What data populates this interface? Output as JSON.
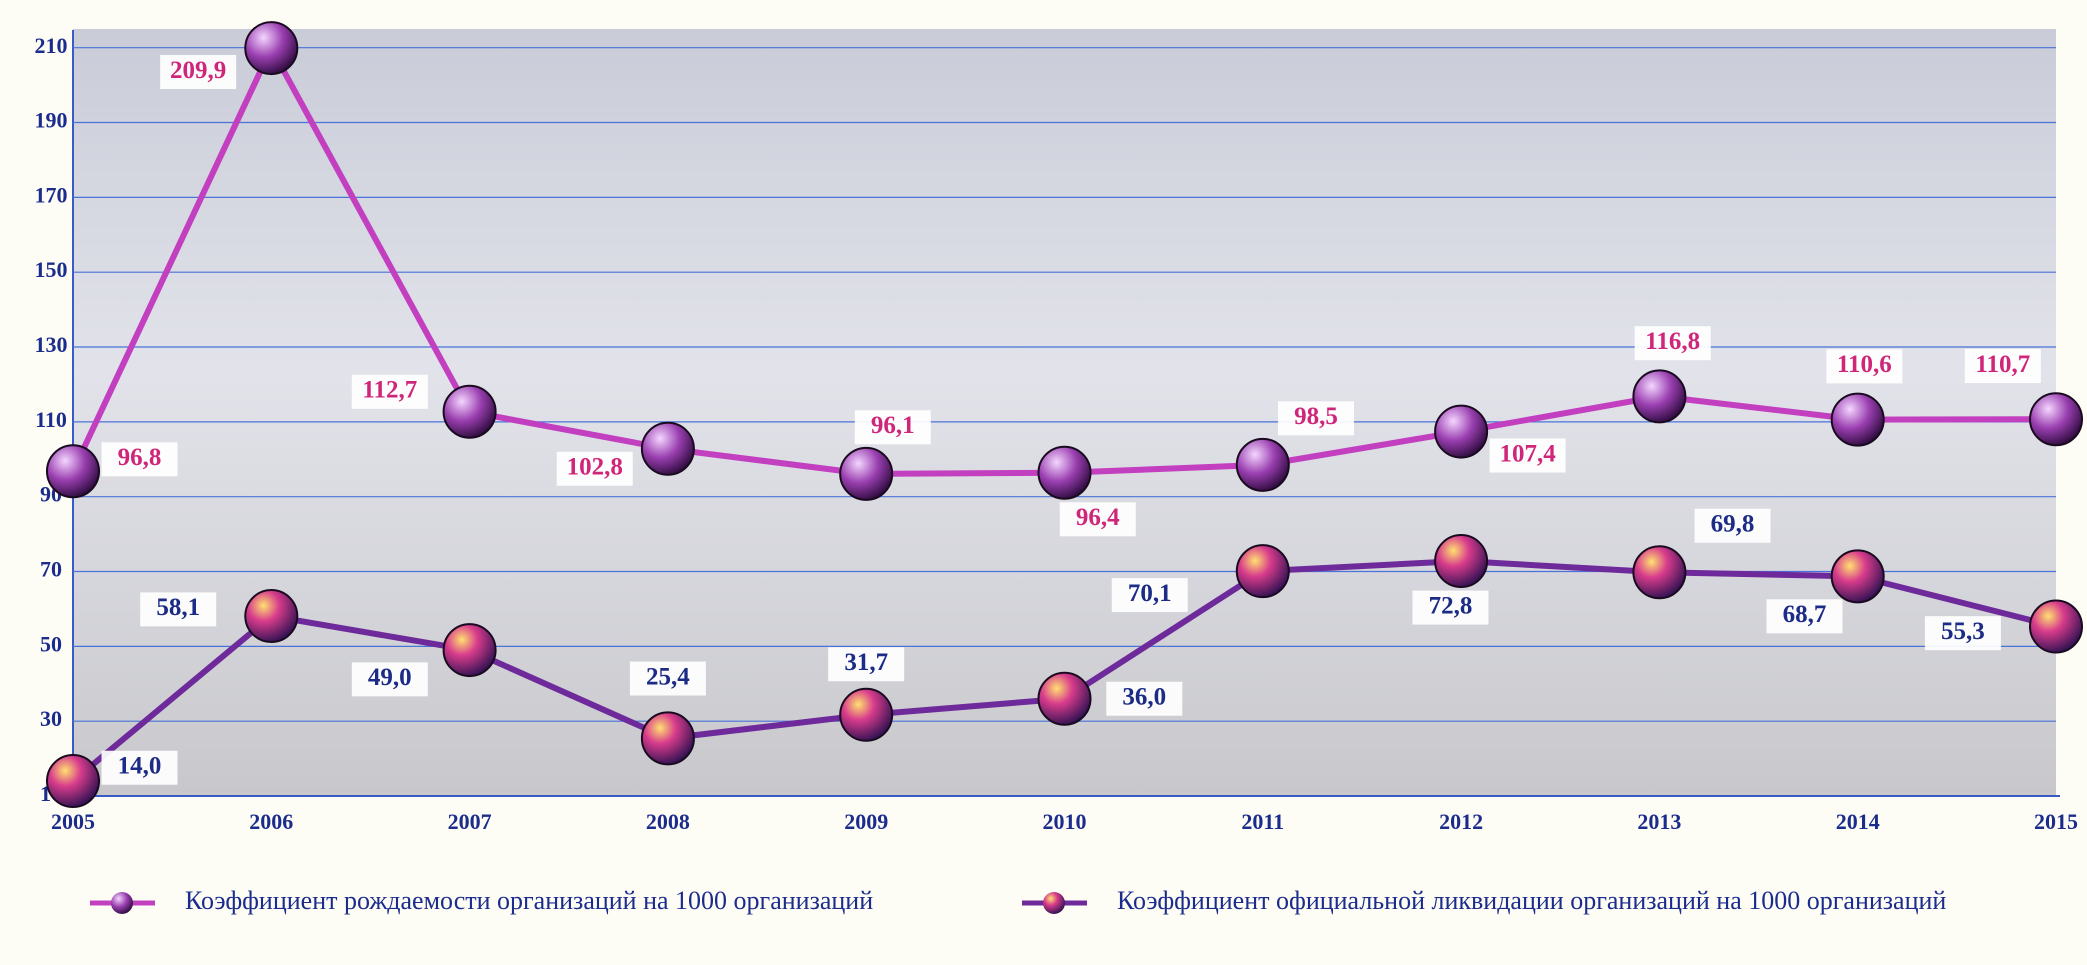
{
  "chart_data": {
    "type": "line",
    "categories": [
      "2005",
      "2006",
      "2007",
      "2008",
      "2009",
      "2010",
      "2011",
      "2012",
      "2013",
      "2014",
      "2015"
    ],
    "series": [
      {
        "name": "Коэффициент рождаемости организаций на 1000 организаций",
        "color": "#c23fc0",
        "values": [
          96.8,
          209.9,
          112.7,
          102.8,
          96.1,
          96.4,
          98.5,
          107.4,
          116.8,
          110.6,
          110.7
        ],
        "value_labels": [
          "96,8",
          "209,9",
          "112,7",
          "102,8",
          "96,1",
          "96,4",
          "98,5",
          "107,4",
          "116,8",
          "110,6",
          "110,7"
        ],
        "label_color": "#d0267a"
      },
      {
        "name": "Коэффициент официальной ликвидации организаций на 1000 организаций",
        "color": "#6e2a9a",
        "values": [
          14.0,
          58.1,
          49.0,
          25.4,
          31.7,
          36.0,
          70.1,
          72.8,
          69.8,
          68.7,
          55.3
        ],
        "value_labels": [
          "14,0",
          "58,1",
          "49,0",
          "25,4",
          "31,7",
          "36,0",
          "70,1",
          "72,8",
          "69,8",
          "68,7",
          "55,3"
        ],
        "label_color": "#1b2b86"
      }
    ],
    "ylim": [
      10,
      215
    ],
    "yticks": [
      10,
      30,
      50,
      70,
      90,
      110,
      130,
      150,
      170,
      190,
      210
    ],
    "grid": true,
    "legend": "bottom"
  }
}
